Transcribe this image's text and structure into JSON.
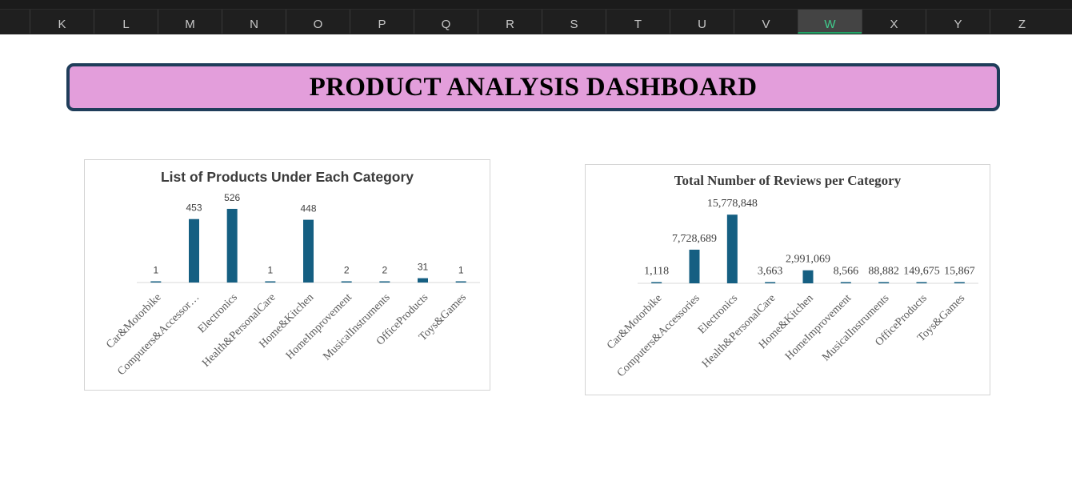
{
  "spreadsheet": {
    "columns": [
      "K",
      "L",
      "M",
      "N",
      "O",
      "P",
      "Q",
      "R",
      "S",
      "T",
      "U",
      "V",
      "W",
      "X",
      "Y",
      "Z"
    ],
    "selected_column": "W"
  },
  "dashboard": {
    "title": "PRODUCT ANALYSIS DASHBOARD",
    "banner_color": "#e39edb",
    "banner_border_color": "#1f3d5a"
  },
  "chart_data": [
    {
      "type": "bar",
      "title": "List of Products Under Each Category",
      "categories": [
        "Car&Motorbike",
        "Computers&Accessories",
        "Electronics",
        "Health&PersonalCare",
        "Home&Kitchen",
        "HomeImprovement",
        "MusicalInstruments",
        "OfficeProducts",
        "Toys&Games"
      ],
      "category_labels": [
        "Car&Motorbike",
        "Computers&Accessor…",
        "Electronics",
        "Health&PersonalCare",
        "Home&Kitchen",
        "HomeImprovement",
        "MusicalInstruments",
        "OfficeProducts",
        "Toys&Games"
      ],
      "values": [
        1,
        453,
        526,
        1,
        448,
        2,
        2,
        31,
        1
      ],
      "value_labels": [
        "1",
        "453",
        "526",
        "1",
        "448",
        "2",
        "2",
        "31",
        "1"
      ],
      "ylim": [
        0,
        560
      ],
      "xlabel": "",
      "ylabel": "",
      "color": "#155f82",
      "grid": false,
      "legend": "none"
    },
    {
      "type": "bar",
      "title": "Total Number of Reviews per Category",
      "categories": [
        "Car&Motorbike",
        "Computers&Accessories",
        "Electronics",
        "Health&PersonalCare",
        "Home&Kitchen",
        "HomeImprovement",
        "MusicalInstruments",
        "OfficeProducts",
        "Toys&Games"
      ],
      "category_labels": [
        "Car&Motorbike",
        "Computers&Accessories",
        "Electronics",
        "Health&PersonalCare",
        "Home&Kitchen",
        "HomeImprovement",
        "MusicalInstruments",
        "OfficeProducts",
        "Toys&Games"
      ],
      "values": [
        1118,
        7728689,
        15778848,
        3663,
        2991069,
        8566,
        88882,
        149675,
        15867
      ],
      "value_labels": [
        "1,118",
        "7,728,689",
        "15,778,848",
        "3,663",
        "2,991,069",
        "8,566",
        "88,882",
        "149,675",
        "15,867"
      ],
      "ylim": [
        0,
        16000000
      ],
      "xlabel": "",
      "ylabel": "",
      "color": "#155f82",
      "grid": false,
      "legend": "none"
    }
  ]
}
